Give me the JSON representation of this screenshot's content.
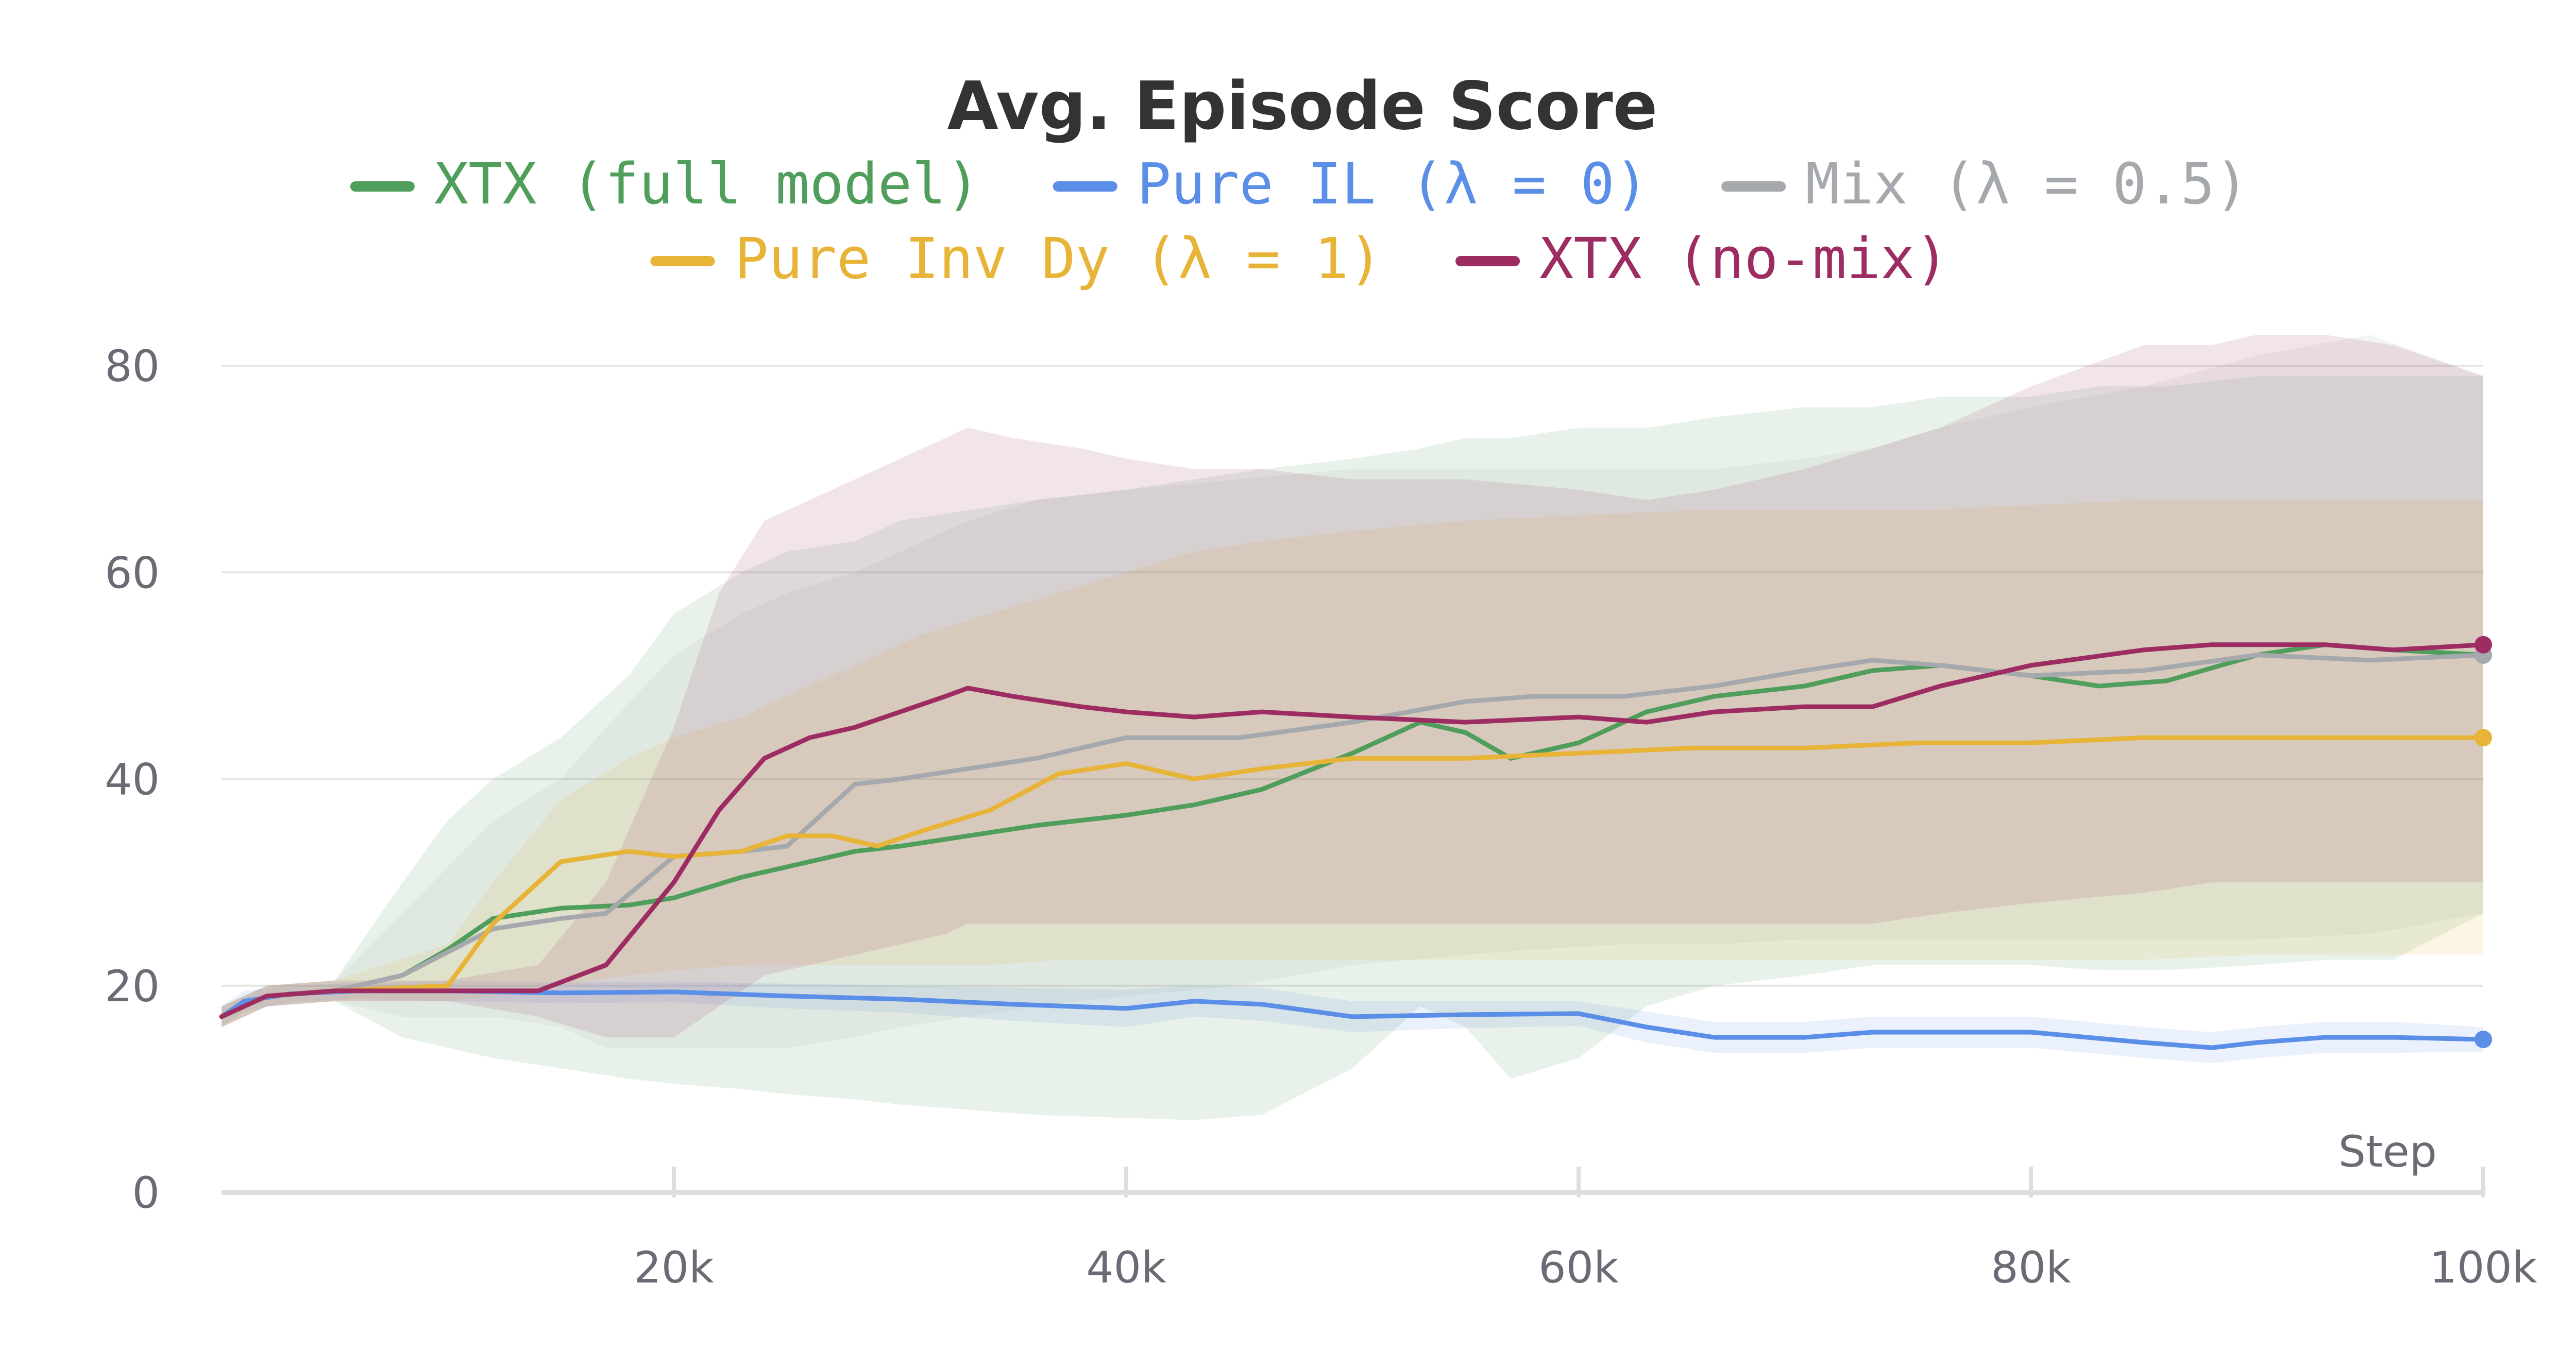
{
  "chart_data": {
    "type": "line",
    "title": "Avg. Episode Score",
    "xlabel": "Step",
    "ylabel": "",
    "xlim": [
      0,
      100000
    ],
    "ylim": [
      0,
      80
    ],
    "grid": true,
    "legend_position": "top",
    "x_ticks": [
      {
        "value": 20000,
        "label": "20k"
      },
      {
        "value": 40000,
        "label": "40k"
      },
      {
        "value": 60000,
        "label": "60k"
      },
      {
        "value": 80000,
        "label": "80k"
      },
      {
        "value": 100000,
        "label": "100k"
      }
    ],
    "y_ticks": [
      {
        "value": 0,
        "label": "0"
      },
      {
        "value": 20,
        "label": "20"
      },
      {
        "value": 40,
        "label": "40"
      },
      {
        "value": 60,
        "label": "60"
      },
      {
        "value": 80,
        "label": "80"
      }
    ],
    "series": [
      {
        "name": "XTX (full model)",
        "color": "#4f9e5c",
        "x": [
          0,
          2000,
          5000,
          8000,
          10000,
          12000,
          15000,
          18000,
          20000,
          23000,
          25000,
          28000,
          30000,
          33000,
          36000,
          40000,
          43000,
          46000,
          50000,
          53000,
          55000,
          57000,
          60000,
          63000,
          66000,
          70000,
          73000,
          76000,
          80000,
          83000,
          86000,
          90000,
          93000,
          96000,
          100000
        ],
        "y": [
          17,
          19,
          19.5,
          21,
          23.5,
          26.5,
          27.5,
          27.8,
          28.5,
          30.5,
          31.5,
          33,
          33.5,
          34.5,
          35.5,
          36.5,
          37.5,
          39,
          42.5,
          45.5,
          44.5,
          42,
          43.5,
          46.5,
          48,
          49,
          50.5,
          51,
          50,
          49,
          49.5,
          52,
          53,
          52.5,
          52
        ],
        "band_upper": [
          18,
          20,
          20.5,
          30,
          36,
          40,
          44,
          50,
          56,
          60,
          62,
          63,
          65,
          66,
          67,
          68,
          69,
          70,
          71,
          72,
          73,
          73,
          74,
          74,
          75,
          76,
          76,
          77,
          77,
          78,
          78,
          79,
          79,
          79,
          79
        ],
        "band_lower": [
          16,
          18,
          18.5,
          15,
          14,
          13,
          12,
          11,
          10.5,
          10,
          9.5,
          9,
          8.5,
          8,
          7.5,
          7.2,
          7,
          7.5,
          12,
          18,
          16,
          11,
          13,
          18,
          20,
          21,
          22,
          22,
          22,
          21.5,
          21.5,
          22,
          22.5,
          22.5,
          27
        ]
      },
      {
        "name": "Pure IL (λ = 0)",
        "color": "#5b8ee6",
        "x": [
          0,
          1000,
          3000,
          6000,
          10000,
          15000,
          20000,
          25000,
          30000,
          35000,
          40000,
          43000,
          46000,
          50000,
          55000,
          60000,
          63000,
          66000,
          70000,
          73000,
          76000,
          80000,
          85000,
          88000,
          90000,
          93000,
          96000,
          100000
        ],
        "y": [
          17,
          18.5,
          19.2,
          19.5,
          19.5,
          19.3,
          19.4,
          19,
          18.7,
          18.2,
          17.8,
          18.5,
          18.2,
          17,
          17.2,
          17.3,
          16,
          15,
          15,
          15.5,
          15.5,
          15.5,
          14.5,
          14,
          14.5,
          15,
          15,
          14.8
        ],
        "band_upper": [
          18,
          19.5,
          20,
          20.3,
          20.5,
          20.3,
          20.4,
          20.2,
          20,
          19.8,
          19.6,
          20,
          19.8,
          18.5,
          18.5,
          18.5,
          17.5,
          16.5,
          16.5,
          17,
          17,
          17,
          16,
          15.5,
          16,
          16.5,
          16.5,
          16
        ],
        "band_lower": [
          16,
          17.5,
          18.4,
          18.7,
          18.5,
          18.3,
          18.4,
          17.8,
          17.4,
          16.6,
          16,
          17,
          16.6,
          15.5,
          15.9,
          16.1,
          14.5,
          13.5,
          13.5,
          14,
          14,
          14,
          13,
          12.5,
          13,
          13.5,
          13.5,
          13.6
        ]
      },
      {
        "name": "Mix (λ = 0.5)",
        "color": "#a5a9ad",
        "x": [
          0,
          2000,
          5000,
          8000,
          12000,
          15000,
          17000,
          20000,
          23000,
          25000,
          28000,
          30000,
          33000,
          36000,
          40000,
          45000,
          50000,
          55000,
          58000,
          62000,
          66000,
          70000,
          73000,
          76000,
          80000,
          85000,
          90000,
          95000,
          100000
        ],
        "y": [
          17,
          19,
          19.5,
          21,
          25.5,
          26.5,
          27,
          32.5,
          33,
          33.5,
          39.5,
          40,
          41,
          42,
          44,
          44,
          45.5,
          47.5,
          48,
          48,
          49,
          50.5,
          51.5,
          51,
          50,
          50.5,
          52,
          51.5,
          52
        ],
        "band_upper": [
          18,
          20,
          20.5,
          27,
          36,
          40,
          45,
          52,
          56,
          58,
          60,
          62,
          65,
          67,
          68,
          69,
          70,
          70,
          70,
          70,
          70,
          71,
          72,
          74,
          76,
          78,
          81,
          83,
          79
        ],
        "band_lower": [
          16,
          18,
          18.5,
          17,
          17,
          16,
          14,
          14,
          14,
          14,
          15,
          16,
          17,
          18,
          19,
          20,
          22,
          23,
          23.5,
          24,
          24,
          24.5,
          24.5,
          24.5,
          24.5,
          24.5,
          24.5,
          25,
          27
        ]
      },
      {
        "name": "Pure Inv Dy (λ = 1)",
        "color": "#e8b437",
        "x": [
          0,
          2000,
          5000,
          10000,
          12000,
          15000,
          18000,
          20000,
          23000,
          25000,
          27000,
          29000,
          31000,
          34000,
          37000,
          40000,
          43000,
          46000,
          50000,
          55000,
          60000,
          65000,
          70000,
          75000,
          80000,
          85000,
          90000,
          95000,
          100000
        ],
        "y": [
          17,
          19,
          19.5,
          20,
          26,
          32,
          33,
          32.5,
          33,
          34.5,
          34.5,
          33.5,
          35,
          37,
          40.5,
          41.5,
          40,
          41,
          42,
          42,
          42.5,
          43,
          43,
          43.5,
          43.5,
          44,
          44,
          44,
          44
        ],
        "band_upper": [
          18,
          20,
          20.5,
          24,
          30,
          38,
          42,
          44,
          46,
          48,
          50,
          52,
          54,
          56,
          58,
          60,
          62,
          63,
          64,
          65,
          65.5,
          66,
          66,
          66,
          66.5,
          67,
          67,
          67,
          67
        ],
        "band_lower": [
          16,
          18,
          18.5,
          18.5,
          19,
          20,
          21,
          21.5,
          22,
          22,
          22,
          22,
          22,
          22,
          22.5,
          22.5,
          22.5,
          22.5,
          22.5,
          22.5,
          22.5,
          22.5,
          22.5,
          22.5,
          22.5,
          22.5,
          23,
          23,
          23
        ]
      },
      {
        "name": "XTX (no-mix)",
        "color": "#9c2c62",
        "x": [
          0,
          2000,
          5000,
          10000,
          14000,
          17000,
          20000,
          22000,
          24000,
          26000,
          28000,
          30000,
          32000,
          33000,
          35000,
          38000,
          40000,
          43000,
          46000,
          50000,
          55000,
          60000,
          63000,
          66000,
          70000,
          73000,
          76000,
          80000,
          85000,
          88000,
          90000,
          93000,
          96000,
          100000
        ],
        "y": [
          17,
          19,
          19.5,
          19.5,
          19.5,
          22,
          30,
          37,
          42,
          44,
          45,
          46.5,
          48,
          48.8,
          48,
          47,
          46.5,
          46,
          46.5,
          46,
          45.5,
          46,
          45.5,
          46.5,
          47,
          47,
          49,
          51,
          52.5,
          53,
          53,
          53,
          52.5,
          53
        ],
        "band_upper": [
          18,
          20,
          20.5,
          20.5,
          22,
          30,
          45,
          58,
          65,
          67,
          69,
          71,
          73,
          74,
          73,
          72,
          71,
          70,
          70,
          69,
          69,
          68,
          67,
          68,
          70,
          72,
          74,
          78,
          82,
          82,
          83,
          83,
          82,
          79
        ],
        "band_lower": [
          16,
          18,
          18.5,
          18.5,
          17,
          15,
          15,
          18,
          21,
          22,
          23,
          24,
          25,
          26,
          26,
          26,
          26,
          26,
          26,
          26,
          26,
          26,
          26,
          26,
          26,
          26,
          27,
          28,
          29,
          30,
          30,
          30,
          30,
          30
        ]
      }
    ]
  }
}
